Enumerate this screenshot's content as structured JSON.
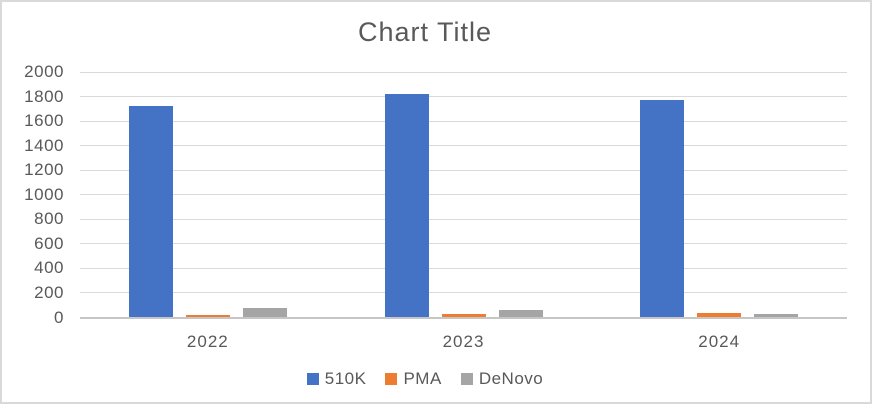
{
  "chart_data": {
    "type": "bar",
    "title": "Chart Title",
    "categories": [
      "2022",
      "2023",
      "2024"
    ],
    "series": [
      {
        "name": "510K",
        "color": "#4472C4",
        "values": [
          1720,
          1820,
          1775
        ]
      },
      {
        "name": "PMA",
        "color": "#ED7D31",
        "values": [
          20,
          30,
          40
        ]
      },
      {
        "name": "DeNovo",
        "color": "#A5A5A5",
        "values": [
          80,
          65,
          25
        ]
      }
    ],
    "xlabel": "",
    "ylabel": "",
    "ylim": [
      0,
      2000
    ],
    "ytick_step": 200,
    "yticks": [
      "0",
      "200",
      "400",
      "600",
      "800",
      "1000",
      "1200",
      "1400",
      "1600",
      "1800",
      "2000"
    ],
    "grid": true,
    "legend_position": "bottom"
  },
  "colors": {
    "text": "#595959",
    "gridline": "#d9d9d9",
    "axis_line": "#c6c6c6",
    "border": "#d9d9d9",
    "background": "#ffffff"
  }
}
